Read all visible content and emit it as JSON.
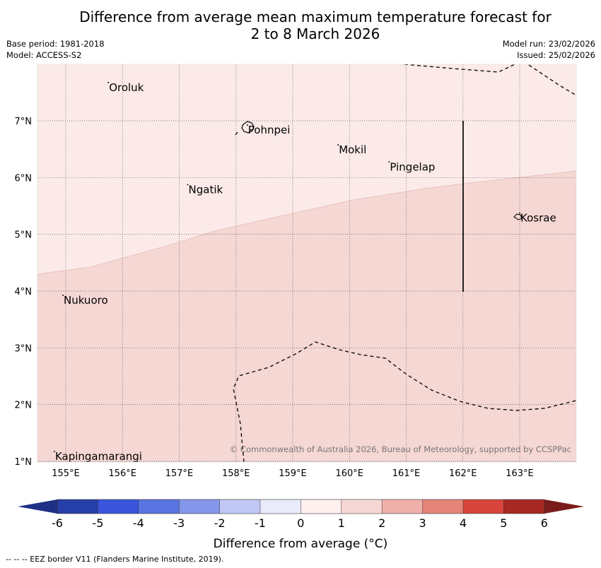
{
  "title_line1": "Difference from average mean maximum temperature forecast for",
  "title_line2": "2 to 8 March 2026",
  "meta_left": {
    "base_period": "Base period: 1981-2018",
    "model": "Model: ACCESS-S2"
  },
  "meta_right": {
    "model_run": "Model run: 23/02/2026",
    "issued": "Issued: 25/02/2026"
  },
  "lat_labels": [
    "7°N",
    "6°N",
    "5°N",
    "4°N",
    "3°N",
    "2°N",
    "1°N"
  ],
  "lon_labels": [
    "155°E",
    "156°E",
    "157°E",
    "158°E",
    "159°E",
    "160°E",
    "161°E",
    "162°E",
    "163°E"
  ],
  "places": [
    {
      "name": "Oroluk",
      "lon": 155.75,
      "lat": 7.6
    },
    {
      "name": "Pohnpei",
      "lon": 158.2,
      "lat": 6.85
    },
    {
      "name": "Mokil",
      "lon": 159.8,
      "lat": 6.5
    },
    {
      "name": "Pingelap",
      "lon": 160.7,
      "lat": 6.2
    },
    {
      "name": "Ngatik",
      "lon": 157.15,
      "lat": 5.8
    },
    {
      "name": "Kosrae",
      "lon": 163.0,
      "lat": 5.3
    },
    {
      "name": "Nukuoro",
      "lon": 154.95,
      "lat": 3.85
    },
    {
      "name": "Kapingamarangi",
      "lon": 154.8,
      "lat": 1.1
    }
  ],
  "copyright": "© Commonwealth of Australia 2026, Bureau of Meteorology, supported by CCSPPac",
  "colorbar": {
    "ticks": [
      "-6",
      "-5",
      "-4",
      "-3",
      "-2",
      "-1",
      "0",
      "1",
      "2",
      "3",
      "4",
      "5",
      "6"
    ],
    "colors": [
      "#263fa8",
      "#3a55dc",
      "#5a74e2",
      "#8496ea",
      "#c0c8f3",
      "#e9ebfb",
      "#fdf0ee",
      "#f7d7d5",
      "#efb0ab",
      "#e68479",
      "#d7453d",
      "#a82824"
    ],
    "under_color": "#1e3085",
    "over_color": "#7a1c1a",
    "label": "Difference from average (°C)"
  },
  "field_colors": {
    "light_band": "#fbeae8",
    "mid_band": "#f5d7d4"
  },
  "footer": "--  --  -- EEZ border V11 (Flanders Marine Institute, 2019)."
}
